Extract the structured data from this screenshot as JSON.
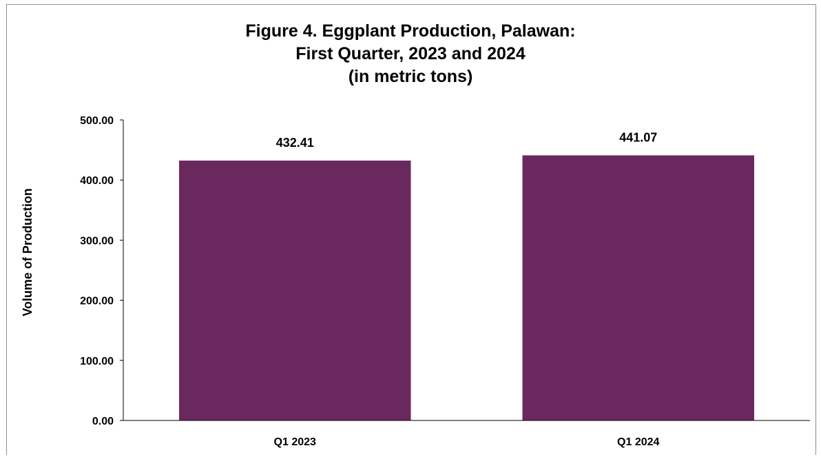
{
  "chart_data": {
    "type": "bar",
    "title_lines": [
      "Figure 4. Eggplant Production, Palawan:",
      "First Quarter, 2023 and 2024",
      "(in metric tons)"
    ],
    "xlabel": "",
    "ylabel": "Volume of Production",
    "categories": [
      "Q1 2023",
      "Q1 2024"
    ],
    "values": [
      432.41,
      441.07
    ],
    "value_labels": [
      "432.41",
      "441.07"
    ],
    "ylim": [
      0,
      500
    ],
    "yticks": [
      0,
      100,
      200,
      300,
      400,
      500
    ],
    "ytick_labels": [
      "0.00",
      "100.00",
      "200.00",
      "300.00",
      "400.00",
      "500.00"
    ],
    "grid": false,
    "legend": "none",
    "bar_color": "#69295f"
  }
}
